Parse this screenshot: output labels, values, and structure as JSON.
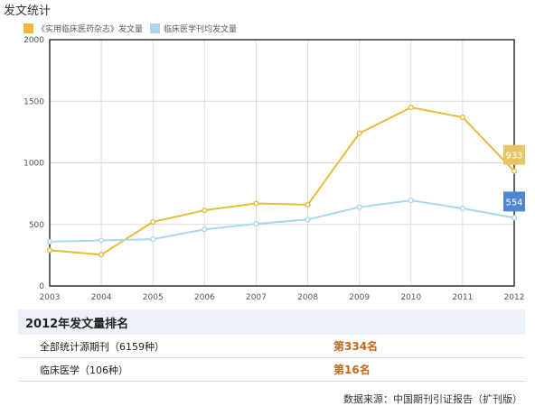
{
  "page": {
    "title": "发文统计"
  },
  "chart_data": {
    "type": "line",
    "x": [
      "2003",
      "2004",
      "2005",
      "2006",
      "2007",
      "2008",
      "2009",
      "2010",
      "2011",
      "2012"
    ],
    "ylim": [
      0,
      2000
    ],
    "yticks": [
      0,
      500,
      1000,
      1500,
      2000
    ],
    "grid": true,
    "legend": "top-left",
    "series": [
      {
        "name": "《实用临床医药杂志》发文量",
        "color": "#e6bc3a",
        "values": [
          290,
          255,
          520,
          615,
          670,
          660,
          1240,
          1450,
          1370,
          933
        ],
        "end_label": "933",
        "end_label_color": "#e8c665"
      },
      {
        "name": "临床医学刊均发文量",
        "color": "#a9d7ef",
        "values": [
          360,
          370,
          380,
          460,
          505,
          540,
          640,
          695,
          630,
          554
        ],
        "end_label": "554",
        "end_label_color": "#4f87d3"
      }
    ]
  },
  "ranking": {
    "heading": "2012年发文量排名",
    "rows": [
      {
        "label": "全部统计源期刊（6159种）",
        "value": "第334名"
      },
      {
        "label": "临床医学（106种）",
        "value": "第16名"
      }
    ]
  },
  "footer": {
    "source": "数据来源：中国期刊引证报告（扩刊版）"
  }
}
